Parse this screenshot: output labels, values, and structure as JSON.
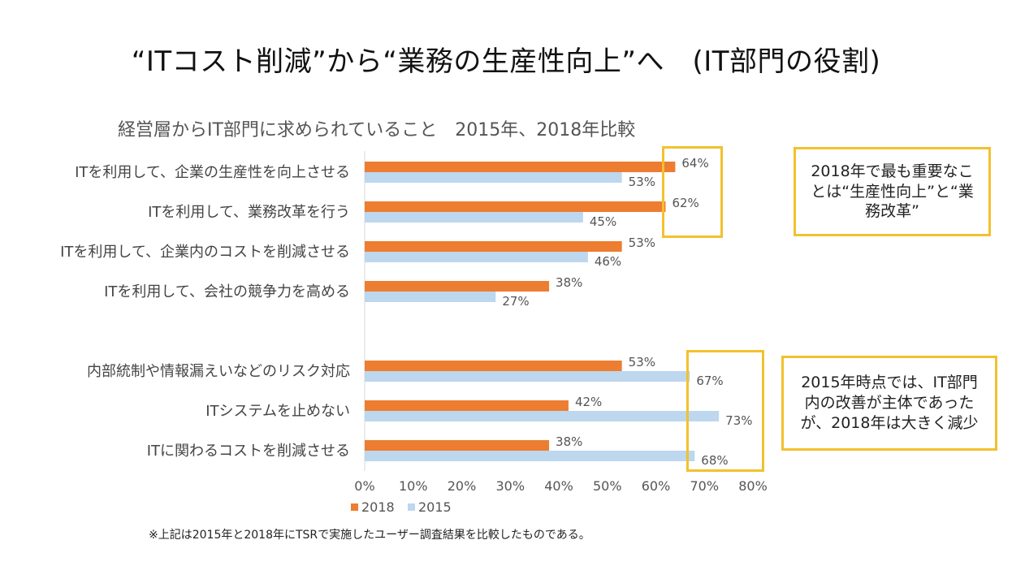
{
  "slide_title": "“ITコスト削減”から“業務の生産性向上”へ　(IT部門の役割)",
  "footnote": "※上記は2015年と2018年にTSRで実施したユーザー調査結果を比較したものである。",
  "chart_data": {
    "type": "bar",
    "orientation": "horizontal",
    "title": "経営層からIT部門に求められていること　2015年、2018年比較",
    "categories": [
      "ITを利用して、企業の生産性を向上させる",
      "ITを利用して、業務改革を行う",
      "ITを利用して、企業内のコストを削減させる",
      "ITを利用して、会社の競争力を高める",
      "内部統制や情報漏えいなどのリスク対応",
      "ITシステムを止めない",
      "ITに関わるコストを削減させる"
    ],
    "series": [
      {
        "name": "2018",
        "color": "#ED7D31",
        "values": [
          64,
          62,
          53,
          38,
          53,
          42,
          38
        ]
      },
      {
        "name": "2015",
        "color": "#BDD7EE",
        "values": [
          53,
          45,
          46,
          27,
          67,
          73,
          68
        ]
      }
    ],
    "value_labels": {
      "2018": [
        "64%",
        "62%",
        "53%",
        "38%",
        "53%",
        "42%",
        "38%"
      ],
      "2015": [
        "53%",
        "45%",
        "46%",
        "27%",
        "67%",
        "73%",
        "68%"
      ]
    },
    "xlim": [
      0,
      80
    ],
    "xticks": [
      "0%",
      "10%",
      "20%",
      "30%",
      "40%",
      "50%",
      "60%",
      "70%",
      "80%"
    ],
    "grid": false,
    "legend": "bottom-left"
  },
  "callouts": [
    {
      "text": "2018年で最も重要なことは“生産性向上”と“業務改革”"
    },
    {
      "text": "2015年時点では、IT部門内の改善が主体であったが、2018年は大きく減少"
    }
  ]
}
